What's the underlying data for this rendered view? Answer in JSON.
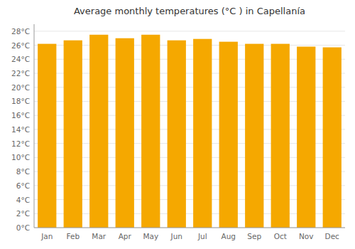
{
  "chart_data": {
    "type": "bar",
    "title": "Average monthly temperatures (°C ) in Capellanía",
    "categories": [
      "Jan",
      "Feb",
      "Mar",
      "Apr",
      "May",
      "Jun",
      "Jul",
      "Aug",
      "Sep",
      "Oct",
      "Nov",
      "Dec"
    ],
    "values": [
      26.2,
      26.7,
      27.5,
      27.0,
      27.5,
      26.7,
      26.9,
      26.5,
      26.2,
      26.2,
      25.8,
      25.7
    ],
    "color": "#F5A800",
    "ylim": [
      0,
      29
    ],
    "yticks": [
      {
        "value": 0,
        "label": "0°C"
      },
      {
        "value": 2,
        "label": "2°C"
      },
      {
        "value": 4,
        "label": "4°C"
      },
      {
        "value": 6,
        "label": "6°C"
      },
      {
        "value": 8,
        "label": "8°C"
      },
      {
        "value": 10,
        "label": "10°C"
      },
      {
        "value": 12,
        "label": "12°C"
      },
      {
        "value": 14,
        "label": "14°C"
      },
      {
        "value": 16,
        "label": "16°C"
      },
      {
        "value": 18,
        "label": "18°C"
      },
      {
        "value": 20,
        "label": "20°C"
      },
      {
        "value": 22,
        "label": "22°C"
      },
      {
        "value": 24,
        "label": "24°C"
      },
      {
        "value": 26,
        "label": "26°C"
      },
      {
        "value": 28,
        "label": "28°C"
      }
    ],
    "grid": true
  }
}
